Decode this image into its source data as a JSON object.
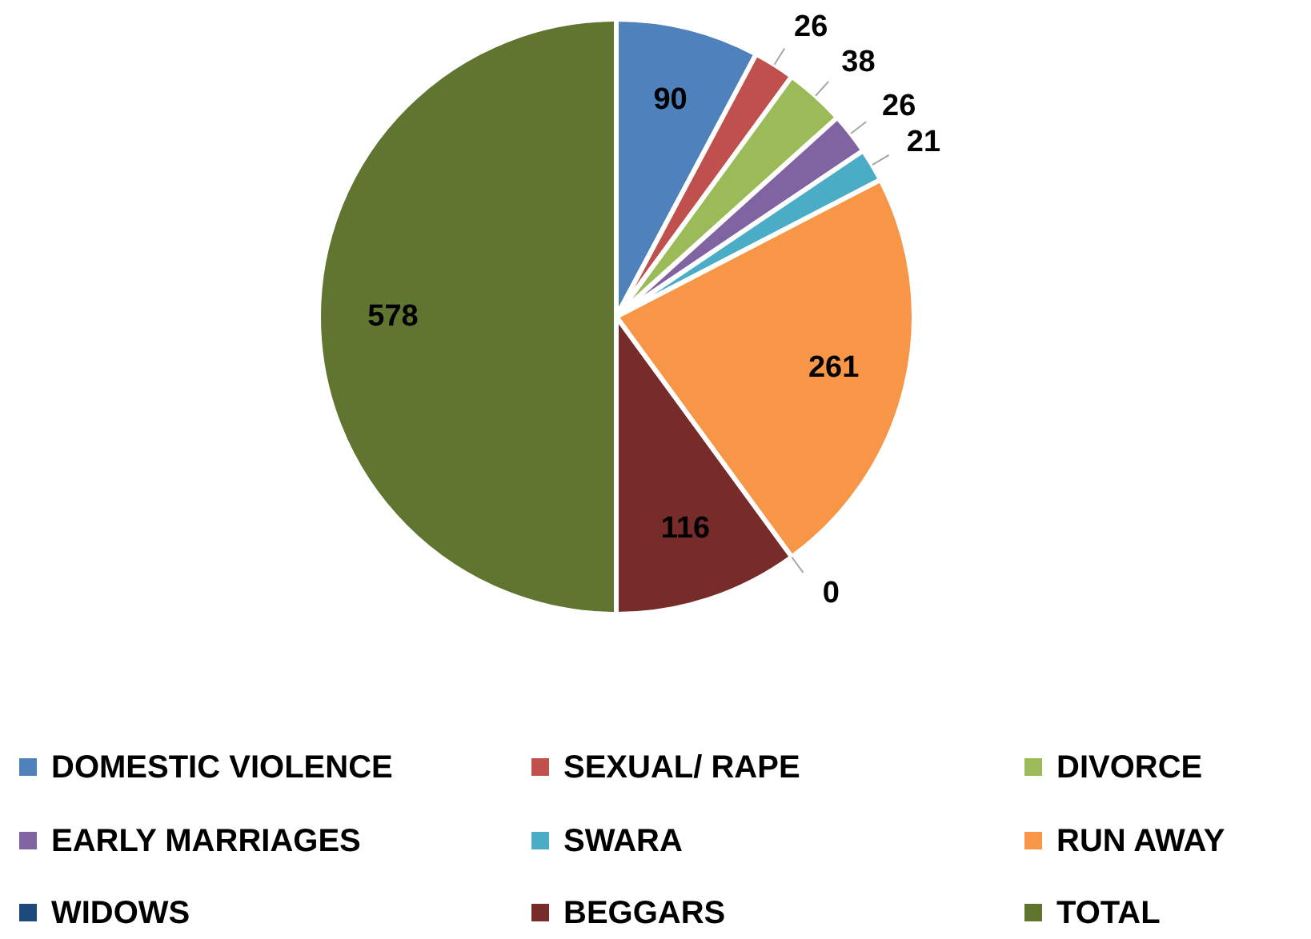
{
  "chart_data": {
    "type": "pie",
    "categories": [
      "DOMESTIC VIOLENCE",
      "SEXUAL/ RAPE",
      "DIVORCE",
      "EARLY MARRIAGES",
      "SWARA",
      "RUN AWAY",
      "WIDOWS",
      "BEGGARS",
      "TOTAL"
    ],
    "values": [
      90,
      26,
      38,
      26,
      21,
      261,
      0,
      116,
      578
    ],
    "colors": [
      "#4f81bd",
      "#c0504d",
      "#9bbb59",
      "#8064a2",
      "#4bacc6",
      "#f79646",
      "#1f497d",
      "#772c2a",
      "#5f7530"
    ],
    "value_labels": [
      "90",
      "26",
      "38",
      "26",
      "21",
      "261",
      "0",
      "116",
      "578"
    ],
    "legend": "bottom"
  }
}
